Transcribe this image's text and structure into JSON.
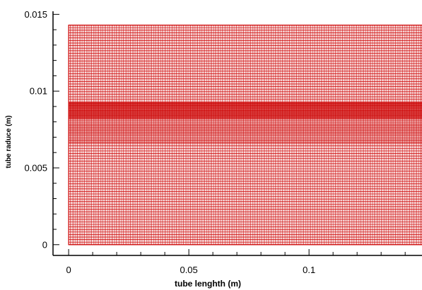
{
  "chart_data": {
    "type": "heatmap",
    "title": "",
    "xlabel": "tube lenghth (m)",
    "ylabel": "tube raduce (m)",
    "xlim": [
      -0.0065,
      0.147
    ],
    "ylim": [
      -0.0007,
      0.0152
    ],
    "x_ticks": [
      {
        "value": 0,
        "label": "0"
      },
      {
        "value": 0.05,
        "label": "0.05"
      },
      {
        "value": 0.1,
        "label": "0.1"
      }
    ],
    "y_ticks": [
      {
        "value": 0,
        "label": "0"
      },
      {
        "value": 0.005,
        "label": "0.005"
      },
      {
        "value": 0.01,
        "label": "0.01"
      },
      {
        "value": 0.015,
        "label": "0.015"
      }
    ],
    "mesh": {
      "x_range": [
        0,
        0.147
      ],
      "y_range": [
        0,
        0.0143
      ],
      "x_cells": 200,
      "y_bands": [
        {
          "from": 0,
          "to": 0.0066,
          "cells": 40
        },
        {
          "from": 0.0066,
          "to": 0.0082,
          "cells": 20
        },
        {
          "from": 0.0082,
          "to": 0.0093,
          "cells": 26
        },
        {
          "from": 0.0093,
          "to": 0.0143,
          "cells": 30
        }
      ],
      "color": "#cc0000"
    },
    "grid": false,
    "legend": "none"
  }
}
